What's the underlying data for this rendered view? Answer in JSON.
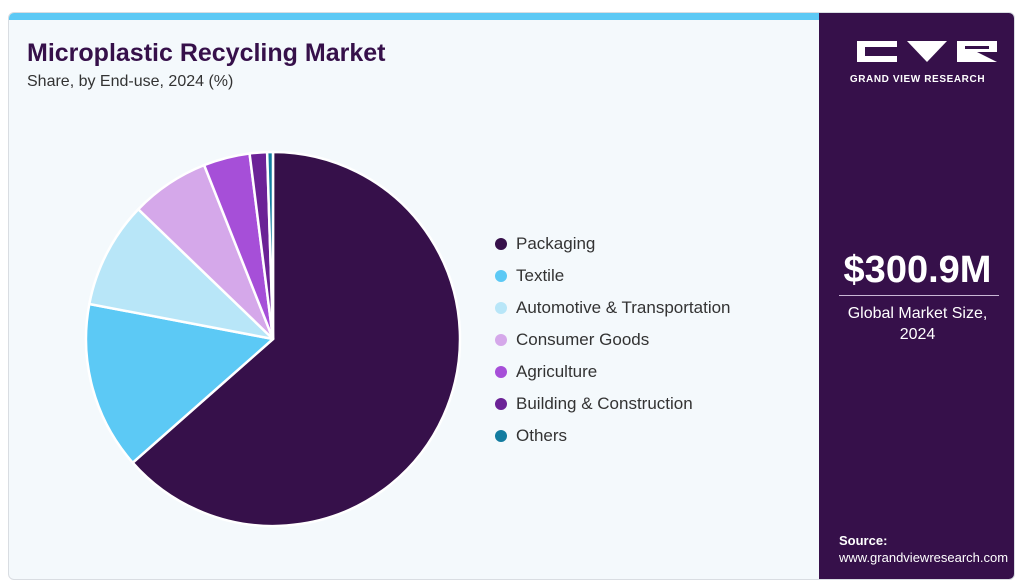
{
  "header": {
    "title": "Microplastic Recycling Market",
    "subtitle": "Share, by End-use, 2024 (%)"
  },
  "chart_data": {
    "type": "pie",
    "categories": [
      "Packaging",
      "Textile",
      "Automotive & Transportation",
      "Consumer Goods",
      "Agriculture",
      "Building & Construction",
      "Others"
    ],
    "values": [
      63.5,
      14.5,
      9.2,
      6.8,
      4.0,
      1.5,
      0.5
    ],
    "colors": [
      "#36104a",
      "#5cc9f5",
      "#b8e6f8",
      "#d5a8ea",
      "#a64fd8",
      "#6b2296",
      "#137ca0"
    ],
    "title": "Microplastic Recycling Market",
    "subtitle": "Share, by End-use, 2024 (%)",
    "legend_position": "right"
  },
  "sidebar": {
    "logo_text": "GRAND VIEW RESEARCH",
    "market_value": "$300.9M",
    "market_label_line1": "Global Market Size,",
    "market_label_line2": "2024",
    "source_label": "Source:",
    "source_url": "www.grandviewresearch.com"
  },
  "colors": {
    "brand_dark": "#36104a",
    "accent_bar": "#5cc9f5",
    "panel_bg": "#f4f9fc"
  }
}
